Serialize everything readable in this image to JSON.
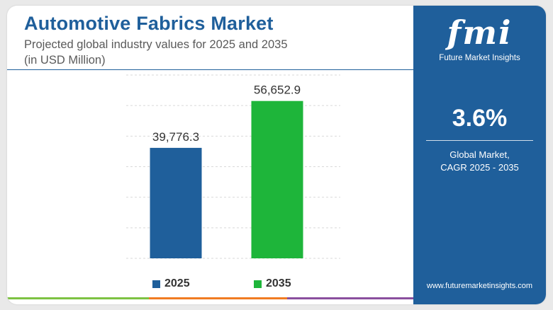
{
  "header": {
    "title": "Automotive Fabrics Market",
    "subtitle": "Projected global industry values for 2025 and 2035",
    "unit": "(in USD Million)"
  },
  "chart_data": {
    "type": "bar",
    "title": "Automotive Fabrics Market",
    "categories": [
      "2025",
      "2035"
    ],
    "values": [
      39776.3,
      56652.9
    ],
    "value_labels": [
      "39,776.3",
      "56,652.9"
    ],
    "colors": [
      "#1f5f9b",
      "#1eb53a"
    ],
    "ylim": [
      0,
      66000
    ],
    "grid": true,
    "legend": [
      {
        "label": "2025",
        "color": "#1f5f9b"
      },
      {
        "label": "2035",
        "color": "#1eb53a"
      }
    ],
    "legend_position": "bottom"
  },
  "side_panel": {
    "logo_text": "fmi",
    "logo_subtitle": "Future Market Insights",
    "cagr_value": "3.6%",
    "cagr_label_line1": "Global Market,",
    "cagr_label_line2": "CAGR 2025 - 2035",
    "website": "www.futuremarketinsights.com"
  },
  "colors": {
    "primary": "#1f5f9b",
    "secondary": "#1eb53a",
    "band_green": "#7dc242",
    "band_orange": "#f07b22",
    "band_purple": "#8a4f9e"
  }
}
